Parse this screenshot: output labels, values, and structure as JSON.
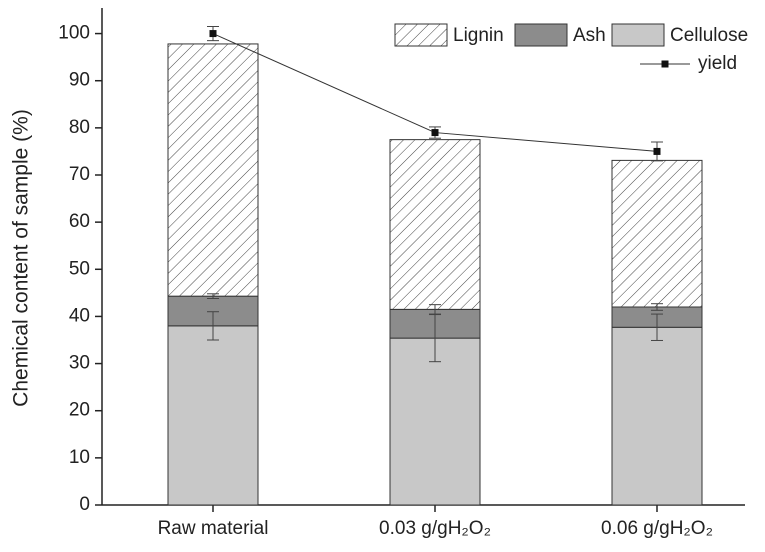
{
  "chart_data": {
    "type": "bar",
    "stacked": true,
    "ylabel": "Chemical content of sample (%)",
    "categories": [
      "Raw material",
      "0.03 g/gH₂O₂",
      "0.06 g/gH₂O₂"
    ],
    "series": [
      {
        "name": "Cellulose",
        "color": "#c8c8c8",
        "values": [
          38,
          35.4,
          37.7
        ],
        "errors": [
          3,
          5,
          2.8
        ]
      },
      {
        "name": "Ash",
        "color": "#8c8c8c",
        "values": [
          6.3,
          6.1,
          4.3
        ],
        "errors": [
          0.5,
          1,
          0.7
        ]
      },
      {
        "name": "Lignin",
        "color": "#ffffff",
        "hatch": true,
        "values": [
          53.5,
          36,
          31.1
        ]
      },
      {
        "name": "yield",
        "type": "line",
        "color": "#333333",
        "values": [
          100,
          79,
          75
        ],
        "errors": [
          1.5,
          1.2,
          2
        ]
      }
    ],
    "ylim": [
      0,
      105
    ],
    "yticks": [
      0,
      10,
      20,
      30,
      40,
      50,
      60,
      70,
      80,
      90,
      100
    ],
    "legend": "upper right"
  }
}
